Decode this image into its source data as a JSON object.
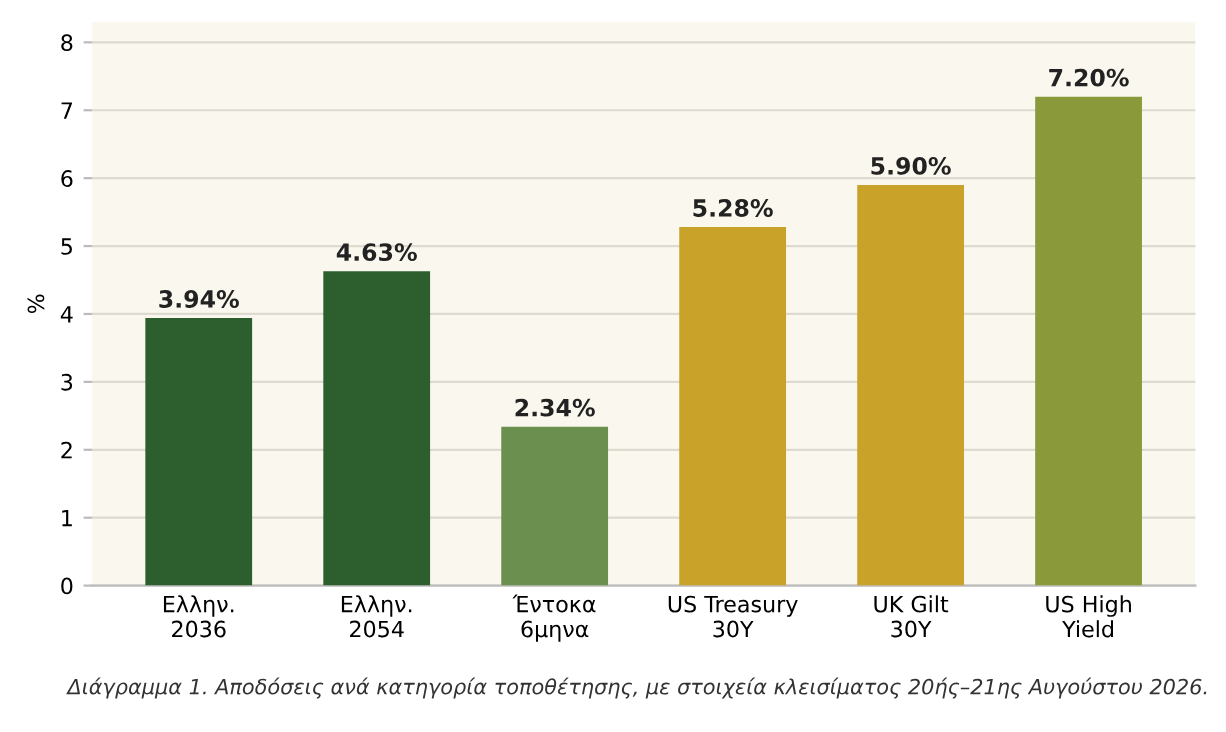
{
  "chart_data": {
    "type": "bar",
    "ylabel": "%",
    "categories": [
      "Ελλην.\n2036",
      "Ελλην.\n2054",
      "Έντοκα\n6μηνα",
      "US Treasury\n30Y",
      "UK Gilt\n30Y",
      "US High\nYield"
    ],
    "values": [
      3.94,
      4.63,
      2.34,
      5.28,
      5.9,
      7.2
    ],
    "value_labels": [
      "3.94%",
      "4.63%",
      "2.34%",
      "5.28%",
      "5.90%",
      "7.20%"
    ],
    "colors": [
      "#2d5e2e",
      "#2d5e2e",
      "#6a8f4e",
      "#c9a22a",
      "#c9a22a",
      "#8a9a3a"
    ],
    "ylim": [
      0,
      8.3
    ],
    "yticks": [
      0,
      1,
      2,
      3,
      4,
      5,
      6,
      7,
      8
    ],
    "grid": "y",
    "annotations": [
      "Διάγραμμα 1. Αποδόσεις ανά κατηγορία τοποθέτησης, με στοιχεία κλεισίματος 20ής–21ης Αυγούστου 2026."
    ]
  }
}
